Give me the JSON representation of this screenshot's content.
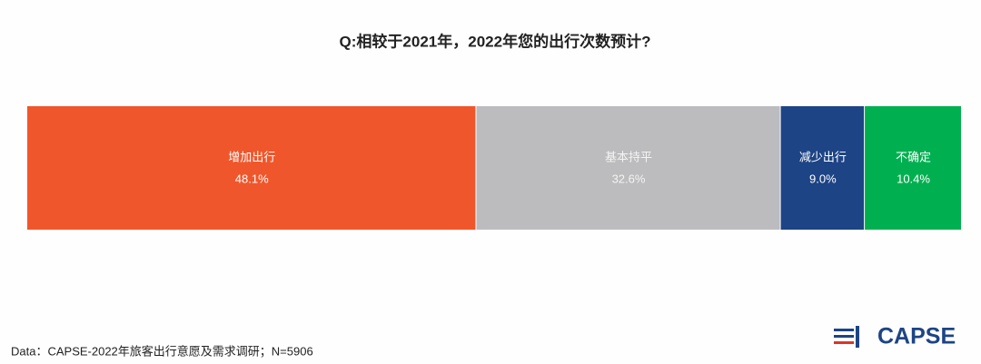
{
  "chart_data": {
    "type": "stacked-bar-100",
    "title": "Q:相较于2021年，2022年您的出行次数预计?",
    "categories": [
      "增加出行",
      "基本持平",
      "减少出行",
      "不确定"
    ],
    "values": [
      48.1,
      32.6,
      9.0,
      10.4
    ],
    "value_labels": [
      "48.1%",
      "32.6%",
      "9.0%",
      "10.4%"
    ],
    "colors": [
      "#f0562b",
      "#bcbbbd",
      "#1d4485",
      "#00b050"
    ]
  },
  "footer": {
    "source": "Data：CAPSE-2022年旅客出行意愿及需求调研；N=5906",
    "logo": "CAPSE"
  }
}
